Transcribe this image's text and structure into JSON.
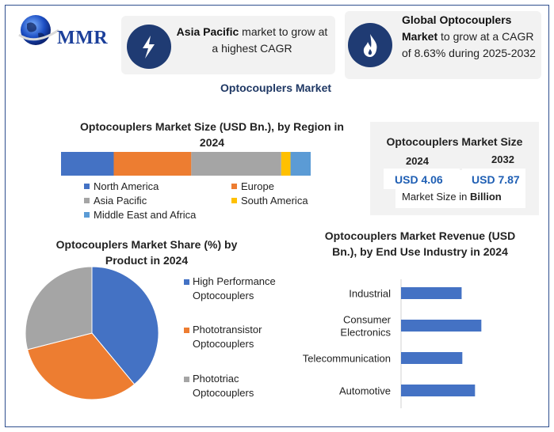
{
  "logo": {
    "text": "MMR"
  },
  "highlight_asia": {
    "bold": "Asia Pacific",
    "rest": " market to grow at a highest CAGR"
  },
  "highlight_global": {
    "bold": "Global Optocouplers Market",
    "rest": " to grow at a CAGR of 8.63% during 2025-2032"
  },
  "main_title": "Optocouplers Market",
  "market_size": {
    "title": "Optocouplers Market Size",
    "year1": "2024",
    "value1": "USD 4.06",
    "year2": "2032",
    "value2": "USD 7.87",
    "note_prefix": "Market Size in ",
    "note_bold": "Billion"
  },
  "colors": {
    "blue": "#4472c4",
    "orange": "#ed7d31",
    "gray": "#a5a5a5",
    "yellow": "#ffc000",
    "lightblue": "#5b9bd5",
    "navy": "#1f3b73"
  },
  "icons": {
    "asia": "lightning-icon",
    "global": "flame-icon"
  },
  "chart_data": [
    {
      "type": "bar",
      "title": "Optocouplers Market Size (USD Bn.), by Region in 2024",
      "stacked": true,
      "orientation": "horizontal",
      "series": [
        {
          "name": "North America",
          "values": [
            17
          ],
          "color": "#4472c4"
        },
        {
          "name": "Europe",
          "values": [
            25
          ],
          "color": "#ed7d31"
        },
        {
          "name": "Asia Pacific",
          "values": [
            29
          ],
          "color": "#a5a5a5"
        },
        {
          "name": "South America",
          "values": [
            3
          ],
          "color": "#ffc000"
        },
        {
          "name": "Middle East and Africa",
          "values": [
            6.5
          ],
          "color": "#5b9bd5"
        }
      ],
      "legend_placement": "bottom"
    },
    {
      "type": "pie",
      "title": "Optocouplers Market Share (%) by Product in 2024",
      "slices": [
        {
          "label": "High Performance Optocouplers",
          "value": 39,
          "color": "#4472c4"
        },
        {
          "label": "Phototransistor Optocouplers",
          "value": 32,
          "color": "#ed7d31"
        },
        {
          "label": "Phototriac Optocouplers",
          "value": 29,
          "color": "#a5a5a5"
        }
      ],
      "legend_placement": "right"
    },
    {
      "type": "bar",
      "title": "Optocouplers Market Revenue (USD Bn.), by End Use Industry in 2024",
      "orientation": "horizontal",
      "categories": [
        "Industrial",
        "Consumer Electronics",
        "Telecommunication",
        "Automotive"
      ],
      "values": [
        0.86,
        1.14,
        0.87,
        1.05
      ],
      "xlim": [
        0,
        1.8
      ],
      "color": "#4472c4",
      "grid": false
    }
  ]
}
